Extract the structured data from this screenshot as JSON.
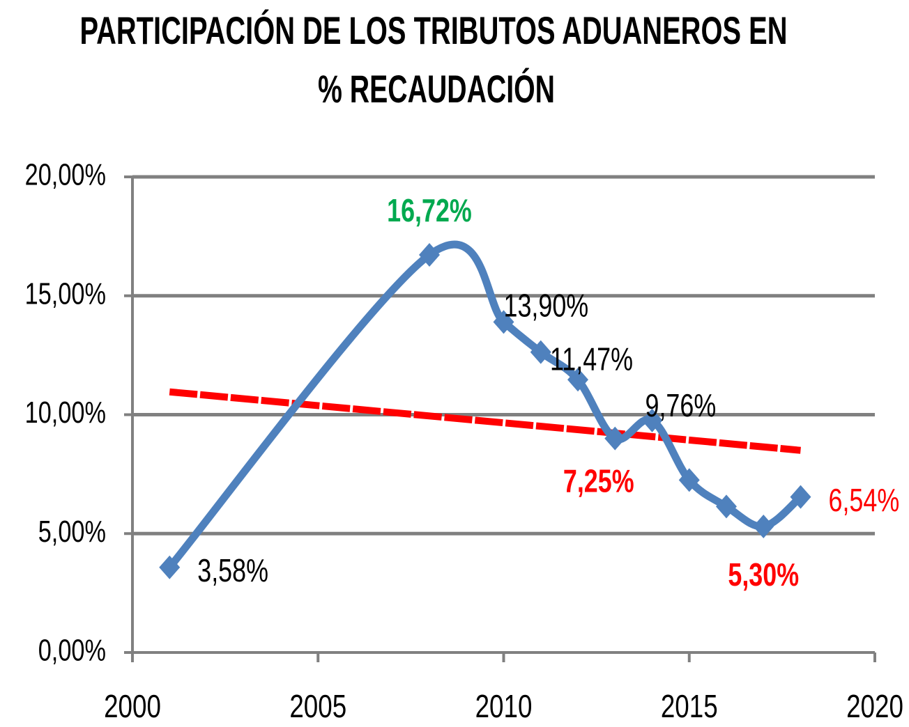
{
  "chart_data": {
    "type": "line",
    "title": [
      "PARTICIPACIÓN DE LOS TRIBUTOS ADUANEROS EN",
      "% RECAUDACIÓN"
    ],
    "x": [
      2001,
      2008,
      2010,
      2011,
      2012,
      2013,
      2014,
      2015,
      2016,
      2017,
      2018
    ],
    "series": [
      {
        "color": "#4f81bd",
        "values": [
          3.58,
          16.72,
          13.9,
          12.63,
          11.47,
          9.0,
          9.76,
          7.25,
          6.14,
          5.3,
          6.54
        ],
        "value_labels": [
          "3,58%",
          "16,72%",
          "13,90%",
          null,
          "11,47%",
          null,
          "9,76%",
          "7,25%",
          null,
          "5,30%",
          "6,54%"
        ],
        "value_label_colors": [
          "#000000",
          "#00a94f",
          "#000000",
          null,
          "#000000",
          null,
          "#000000",
          "#ff0000",
          null,
          "#ff0000",
          "#ff0000"
        ]
      }
    ],
    "trendline": {
      "color": "#ff0000",
      "x": [
        2001,
        2018
      ],
      "values": [
        10.96,
        8.5
      ]
    },
    "xlim": [
      2000,
      2020
    ],
    "xticks": [
      2000,
      2005,
      2010,
      2015,
      2020
    ],
    "ylim": [
      0,
      20
    ],
    "yticks": [
      {
        "value": 0,
        "label": "0,00%"
      },
      {
        "value": 5,
        "label": "5,00%"
      },
      {
        "value": 10,
        "label": "10,00%"
      },
      {
        "value": 15,
        "label": "15,00%"
      },
      {
        "value": 20,
        "label": "20,00%"
      }
    ],
    "grid": true
  }
}
